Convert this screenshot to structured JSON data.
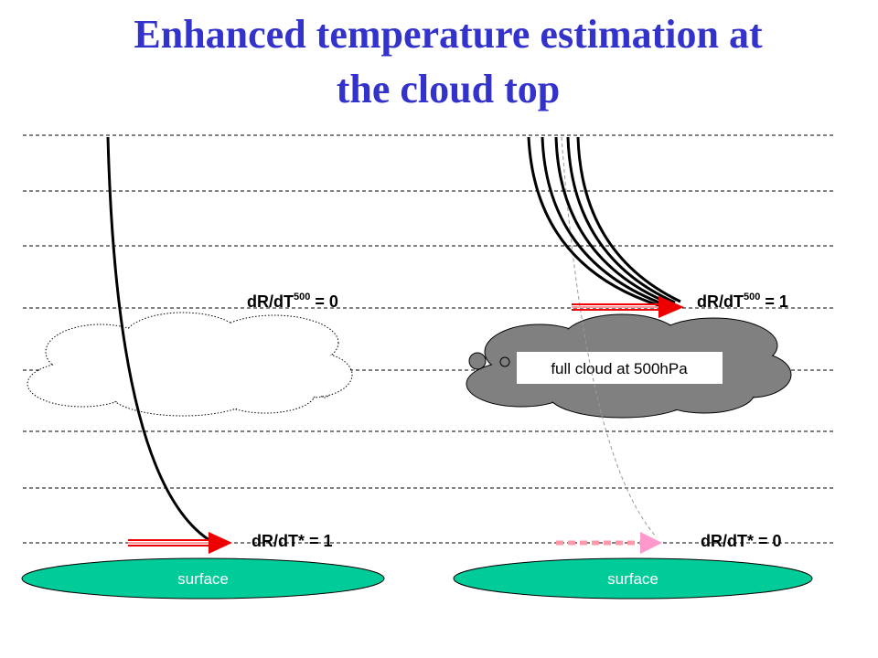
{
  "title_lines": [
    "Enhanced temperature estimation at",
    "the cloud top"
  ],
  "left_panel": {
    "upper_label": {
      "base": "dR/dT",
      "superscript": "500",
      "rest": " = 0"
    },
    "lower_label": "dR/dT* = 1",
    "surface": "surface"
  },
  "right_panel": {
    "upper_label": {
      "base": "dR/dT",
      "superscript": "500",
      "rest": " = 1"
    },
    "lower_label": "dR/dT* = 0",
    "surface": "surface",
    "cloud_label": "full cloud at 500hPa"
  }
}
